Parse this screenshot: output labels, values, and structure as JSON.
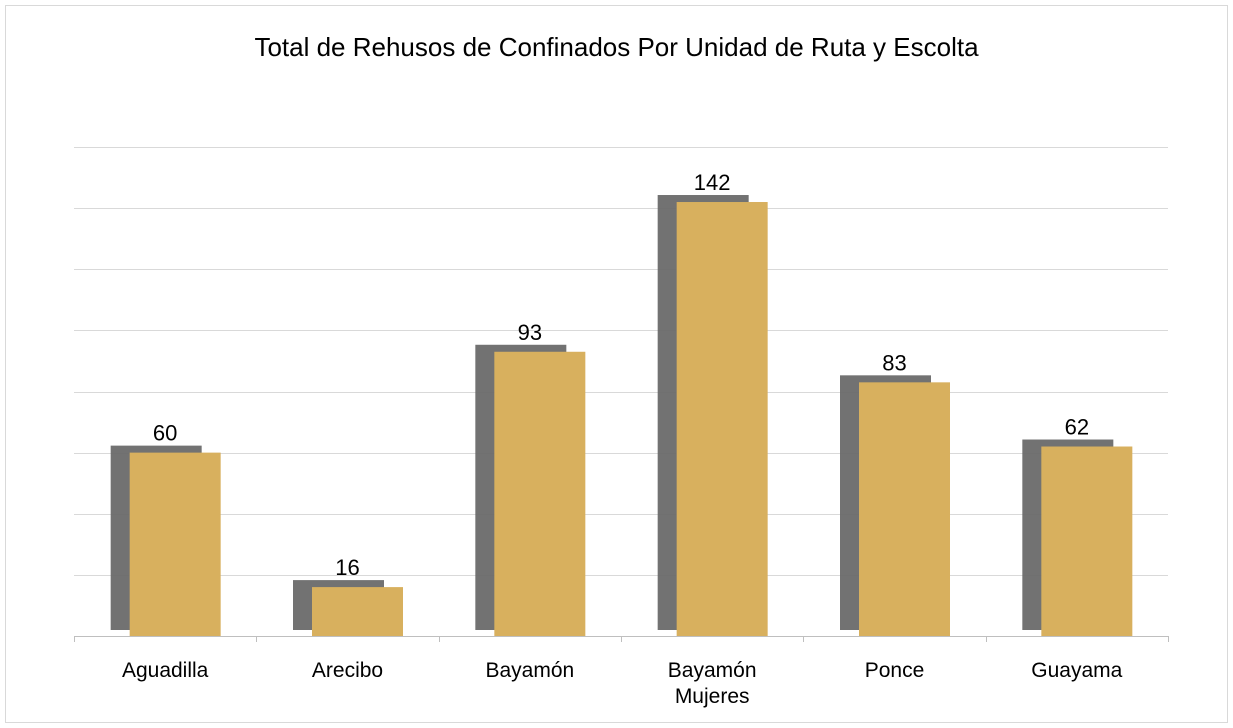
{
  "chart_data": {
    "type": "bar",
    "title": "Total de Rehusos de Confinados Por Unidad de Ruta y Escolta",
    "categories": [
      [
        "Aguadilla"
      ],
      [
        "Arecibo"
      ],
      [
        "Bayamón"
      ],
      [
        "Bayamón",
        "Mujeres"
      ],
      [
        "Ponce"
      ],
      [
        "Guayama"
      ]
    ],
    "values": [
      60,
      16,
      93,
      142,
      83,
      62
    ],
    "data_labels": [
      "60",
      "16",
      "93",
      "142",
      "83",
      "62"
    ],
    "ylim": [
      0,
      160
    ],
    "y_gridline_step": 20,
    "y_tick_labels_shown": false,
    "legend": "none",
    "grid": true,
    "colors": {
      "bar": "#d8b05e",
      "shadow": "#6a6a6a",
      "gridline": "#d9d9d9",
      "axis": "#bfbfbf",
      "text": "#000000"
    }
  }
}
